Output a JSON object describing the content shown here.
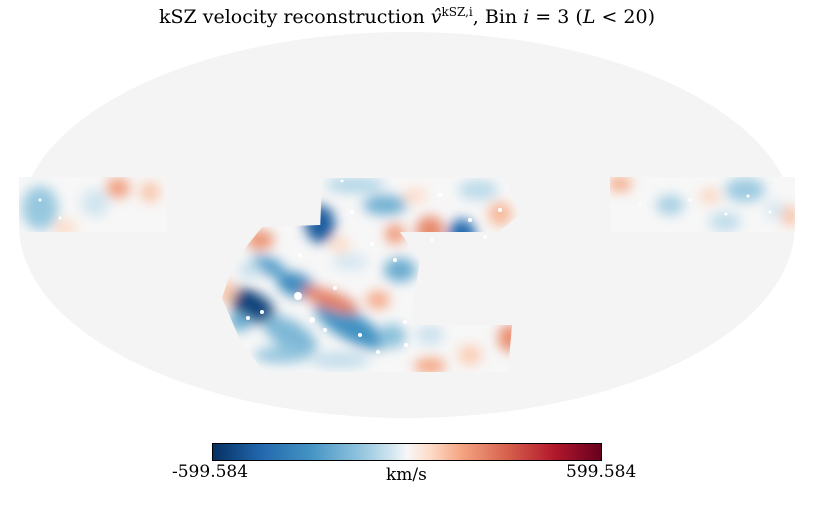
{
  "figure": {
    "title_text": "kSZ velocity reconstruction ",
    "title_symbol": "v̂",
    "title_superscript": "kSZ,i",
    "title_bin": ", Bin ",
    "title_bin_var": "i",
    "title_bin_value": " = 3 (",
    "title_cut_var": "L",
    "title_cut": " < 20)"
  },
  "projection": "mollweide",
  "mask_color": "#f4f4f4",
  "colormap": "RdBu_r",
  "colorbar": {
    "min_label": "-599.584",
    "max_label": "599.584",
    "unit_label": "km/s",
    "min_value": -599.584,
    "max_value": 599.584,
    "colors": [
      "#053061",
      "#2166ac",
      "#4393c3",
      "#92c5de",
      "#d1e5f0",
      "#f7f7f7",
      "#fddbc7",
      "#f4a582",
      "#d6604d",
      "#b2182b",
      "#67001f"
    ]
  },
  "features": [
    {
      "value": -560
    },
    {
      "value": -500
    },
    {
      "value": -470
    },
    {
      "value": -380
    },
    {
      "value": -360
    },
    {
      "value": -330
    },
    {
      "value": -300
    },
    {
      "value": -300
    },
    {
      "value": -290
    },
    {
      "value": -270
    },
    {
      "value": -250
    },
    {
      "value": -240
    },
    {
      "value": -230
    },
    {
      "value": -220
    },
    {
      "value": -200
    },
    {
      "value": -180
    },
    {
      "value": -160
    },
    {
      "value": -150
    },
    {
      "value": -150
    },
    {
      "value": -140
    },
    {
      "value": -130
    },
    {
      "value": -120
    },
    {
      "value": -110
    },
    {
      "value": -100
    },
    {
      "value": 300
    },
    {
      "value": 290
    },
    {
      "value": 280
    },
    {
      "value": 270
    },
    {
      "value": 260
    },
    {
      "value": 250
    },
    {
      "value": 240
    },
    {
      "value": 230
    },
    {
      "value": 220
    },
    {
      "value": 210
    },
    {
      "value": 200
    },
    {
      "value": 180
    },
    {
      "value": 170
    },
    {
      "value": 160
    },
    {
      "value": 150
    },
    {
      "value": 130
    },
    {
      "value": 120
    },
    {
      "value": 120
    },
    {
      "value": 110
    }
  ]
}
